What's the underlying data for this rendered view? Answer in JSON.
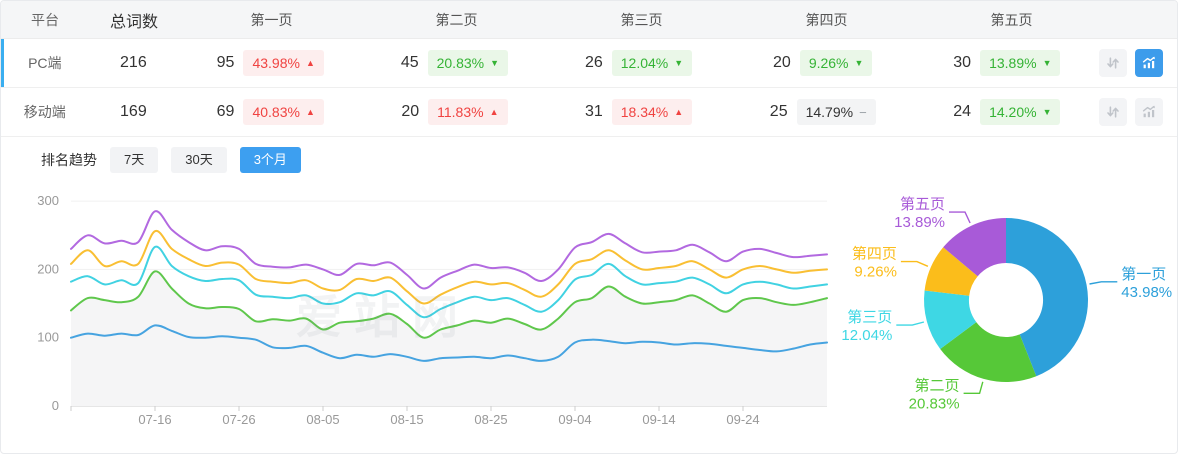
{
  "colors": {
    "accent_blue": "#3d9ceb",
    "row_accent": "#3aaef0",
    "badge_up_text": "#f04341",
    "badge_down_text": "#35b335"
  },
  "table": {
    "headers": [
      "平台",
      "总词数",
      "第一页",
      "第二页",
      "第三页",
      "第四页",
      "第五页"
    ],
    "rows": [
      {
        "platform": "PC端",
        "total": "216",
        "selected": true,
        "chart_active": true,
        "pages": [
          {
            "count": "95",
            "pct": "43.98%",
            "trend": "up",
            "arrow": "▲"
          },
          {
            "count": "45",
            "pct": "20.83%",
            "trend": "down",
            "arrow": "▼"
          },
          {
            "count": "26",
            "pct": "12.04%",
            "trend": "down",
            "arrow": "▼"
          },
          {
            "count": "20",
            "pct": "9.26%",
            "trend": "down",
            "arrow": "▼"
          },
          {
            "count": "30",
            "pct": "13.89%",
            "trend": "down",
            "arrow": "▼"
          }
        ]
      },
      {
        "platform": "移动端",
        "total": "169",
        "selected": false,
        "chart_active": false,
        "pages": [
          {
            "count": "69",
            "pct": "40.83%",
            "trend": "up",
            "arrow": "▲"
          },
          {
            "count": "20",
            "pct": "11.83%",
            "trend": "up",
            "arrow": "▲"
          },
          {
            "count": "31",
            "pct": "18.34%",
            "trend": "up",
            "arrow": "▲"
          },
          {
            "count": "25",
            "pct": "14.79%",
            "trend": "flat",
            "arrow": "−"
          },
          {
            "count": "24",
            "pct": "14.20%",
            "trend": "down",
            "arrow": "▼"
          }
        ]
      }
    ]
  },
  "trend_bar": {
    "label": "排名趋势",
    "tabs": [
      {
        "label": "7天",
        "active": false
      },
      {
        "label": "30天",
        "active": false
      },
      {
        "label": "3个月",
        "active": true
      }
    ]
  },
  "watermark": "爱站网",
  "chart_data": [
    {
      "type": "line",
      "title": "排名趋势（3个月）",
      "ylim": [
        0,
        300
      ],
      "yticks": [
        0,
        100,
        200,
        300
      ],
      "grid": true,
      "x_tick_labels": [
        "07-16",
        "07-26",
        "08-05",
        "08-15",
        "08-25",
        "09-04",
        "09-14",
        "09-24"
      ],
      "x_first_tick_index": 5,
      "x_tick_step": 5,
      "series": [
        {
          "name": "第一页",
          "color": "#46a3e0",
          "values": [
            100,
            106,
            103,
            106,
            104,
            118,
            110,
            101,
            100,
            102,
            100,
            97,
            86,
            85,
            88,
            78,
            70,
            75,
            72,
            76,
            72,
            66,
            70,
            71,
            72,
            70,
            74,
            70,
            66,
            72,
            93,
            97,
            95,
            92,
            94,
            93,
            90,
            92,
            91,
            88,
            85,
            82,
            80,
            84,
            90,
            93
          ]
        },
        {
          "name": "第二页",
          "color": "#5fc74c",
          "area": true,
          "area_fill": "#f5f5f6",
          "values": [
            140,
            158,
            155,
            152,
            160,
            197,
            172,
            150,
            143,
            145,
            142,
            124,
            127,
            125,
            128,
            112,
            122,
            124,
            128,
            135,
            120,
            100,
            112,
            118,
            125,
            122,
            128,
            120,
            112,
            128,
            152,
            158,
            175,
            160,
            150,
            152,
            155,
            162,
            150,
            138,
            155,
            158,
            152,
            148,
            152,
            158
          ]
        },
        {
          "name": "第三页",
          "color": "#41d2e2",
          "values": [
            182,
            190,
            178,
            184,
            180,
            233,
            205,
            190,
            183,
            186,
            184,
            163,
            160,
            158,
            162,
            150,
            152,
            165,
            162,
            168,
            148,
            130,
            142,
            152,
            160,
            155,
            158,
            148,
            138,
            155,
            185,
            192,
            208,
            190,
            178,
            180,
            182,
            188,
            178,
            165,
            178,
            182,
            178,
            172,
            175,
            178
          ]
        },
        {
          "name": "第四页",
          "color": "#f9bf33",
          "values": [
            208,
            228,
            205,
            212,
            208,
            256,
            230,
            215,
            205,
            210,
            207,
            186,
            182,
            180,
            184,
            172,
            170,
            186,
            183,
            188,
            168,
            150,
            163,
            174,
            182,
            178,
            180,
            170,
            160,
            178,
            208,
            215,
            228,
            213,
            200,
            202,
            205,
            212,
            200,
            188,
            200,
            205,
            200,
            195,
            198,
            200
          ]
        },
        {
          "name": "第五页",
          "color": "#b269e0",
          "values": [
            230,
            250,
            238,
            242,
            240,
            285,
            258,
            240,
            228,
            234,
            230,
            208,
            204,
            203,
            207,
            200,
            192,
            208,
            206,
            210,
            192,
            172,
            188,
            198,
            207,
            202,
            203,
            195,
            183,
            200,
            232,
            240,
            252,
            238,
            225,
            226,
            228,
            236,
            225,
            212,
            226,
            230,
            224,
            218,
            220,
            222
          ]
        }
      ]
    },
    {
      "type": "pie",
      "donut": true,
      "inner_radius_ratio": 0.45,
      "labels": [
        "第一页",
        "第二页",
        "第三页",
        "第四页",
        "第五页"
      ],
      "values": [
        43.98,
        20.83,
        12.04,
        9.26,
        13.89
      ],
      "display": [
        "43.98%",
        "20.83%",
        "12.04%",
        "9.26%",
        "13.89%"
      ],
      "colors": [
        "#2da0da",
        "#56c838",
        "#3ed7e4",
        "#fbbd1b",
        "#a85ad8"
      ]
    }
  ]
}
